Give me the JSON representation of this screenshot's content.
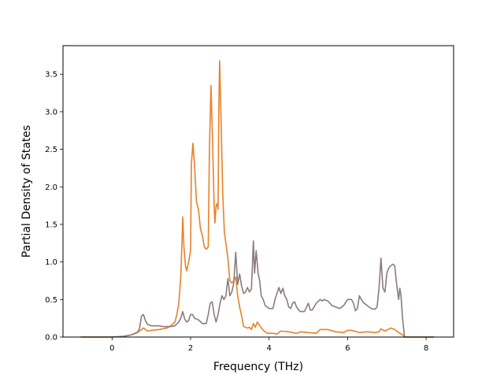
{
  "chart_data": {
    "type": "line",
    "title": "",
    "xlabel": "Frequency (THz)",
    "ylabel": "Partial Density of States",
    "xlim": [
      -1.25,
      8.7
    ],
    "ylim": [
      0,
      3.88
    ],
    "xticks": [
      0,
      2,
      4,
      6,
      8
    ],
    "xtick_labels": [
      "0",
      "2",
      "4",
      "6",
      "8"
    ],
    "yticks": [
      0.0,
      0.5,
      1.0,
      1.5,
      2.0,
      2.5,
      3.0,
      3.5
    ],
    "ytick_labels": [
      "0.0",
      "0.5",
      "1.0",
      "1.5",
      "2.0",
      "2.5",
      "3.0",
      "3.5"
    ],
    "grid": false,
    "legend": "none",
    "series": [
      {
        "color": "#e8812b",
        "points": [
          [
            -0.8,
            0.0
          ],
          [
            0.0,
            0.0
          ],
          [
            0.3,
            0.01
          ],
          [
            0.5,
            0.03
          ],
          [
            0.7,
            0.08
          ],
          [
            0.8,
            0.12
          ],
          [
            0.9,
            0.08
          ],
          [
            1.0,
            0.09
          ],
          [
            1.2,
            0.1
          ],
          [
            1.4,
            0.12
          ],
          [
            1.5,
            0.15
          ],
          [
            1.6,
            0.2
          ],
          [
            1.65,
            0.3
          ],
          [
            1.7,
            0.45
          ],
          [
            1.75,
            0.8
          ],
          [
            1.78,
            1.25
          ],
          [
            1.8,
            1.6
          ],
          [
            1.83,
            1.2
          ],
          [
            1.87,
            0.95
          ],
          [
            1.9,
            0.88
          ],
          [
            1.95,
            1.0
          ],
          [
            2.0,
            1.15
          ],
          [
            2.02,
            2.3
          ],
          [
            2.06,
            2.58
          ],
          [
            2.1,
            2.3
          ],
          [
            2.15,
            1.8
          ],
          [
            2.2,
            1.7
          ],
          [
            2.25,
            1.45
          ],
          [
            2.3,
            1.35
          ],
          [
            2.35,
            1.2
          ],
          [
            2.4,
            1.17
          ],
          [
            2.45,
            1.2
          ],
          [
            2.48,
            2.5
          ],
          [
            2.52,
            3.35
          ],
          [
            2.56,
            2.6
          ],
          [
            2.6,
            1.75
          ],
          [
            2.62,
            1.52
          ],
          [
            2.65,
            1.75
          ],
          [
            2.68,
            1.78
          ],
          [
            2.7,
            1.7
          ],
          [
            2.72,
            3.05
          ],
          [
            2.74,
            3.68
          ],
          [
            2.78,
            2.8
          ],
          [
            2.82,
            1.9
          ],
          [
            2.86,
            1.4
          ],
          [
            2.9,
            1.25
          ],
          [
            2.95,
            1.05
          ],
          [
            3.0,
            0.75
          ],
          [
            3.05,
            0.72
          ],
          [
            3.1,
            0.75
          ],
          [
            3.15,
            0.8
          ],
          [
            3.2,
            0.55
          ],
          [
            3.25,
            0.4
          ],
          [
            3.3,
            0.28
          ],
          [
            3.35,
            0.14
          ],
          [
            3.45,
            0.12
          ],
          [
            3.5,
            0.13
          ],
          [
            3.55,
            0.1
          ],
          [
            3.6,
            0.18
          ],
          [
            3.65,
            0.13
          ],
          [
            3.7,
            0.2
          ],
          [
            3.75,
            0.16
          ],
          [
            3.85,
            0.09
          ],
          [
            3.95,
            0.05
          ],
          [
            4.1,
            0.05
          ],
          [
            4.2,
            0.04
          ],
          [
            4.3,
            0.08
          ],
          [
            4.5,
            0.07
          ],
          [
            4.7,
            0.05
          ],
          [
            4.8,
            0.07
          ],
          [
            5.0,
            0.06
          ],
          [
            5.2,
            0.05
          ],
          [
            5.3,
            0.1
          ],
          [
            5.5,
            0.1
          ],
          [
            5.7,
            0.07
          ],
          [
            5.9,
            0.06
          ],
          [
            6.0,
            0.09
          ],
          [
            6.1,
            0.09
          ],
          [
            6.3,
            0.06
          ],
          [
            6.5,
            0.07
          ],
          [
            6.7,
            0.06
          ],
          [
            6.8,
            0.07
          ],
          [
            6.85,
            0.11
          ],
          [
            6.95,
            0.08
          ],
          [
            7.1,
            0.12
          ],
          [
            7.2,
            0.1
          ],
          [
            7.3,
            0.06
          ],
          [
            7.4,
            0.03
          ],
          [
            7.45,
            0.0
          ],
          [
            8.2,
            0.0
          ]
        ]
      },
      {
        "color": "#8b7b7b",
        "points": [
          [
            -0.8,
            0.0
          ],
          [
            0.0,
            0.0
          ],
          [
            0.3,
            0.01
          ],
          [
            0.5,
            0.03
          ],
          [
            0.65,
            0.06
          ],
          [
            0.7,
            0.12
          ],
          [
            0.75,
            0.28
          ],
          [
            0.8,
            0.3
          ],
          [
            0.85,
            0.22
          ],
          [
            0.9,
            0.17
          ],
          [
            1.0,
            0.15
          ],
          [
            1.2,
            0.15
          ],
          [
            1.3,
            0.14
          ],
          [
            1.5,
            0.14
          ],
          [
            1.6,
            0.15
          ],
          [
            1.7,
            0.2
          ],
          [
            1.75,
            0.25
          ],
          [
            1.8,
            0.34
          ],
          [
            1.85,
            0.24
          ],
          [
            1.9,
            0.2
          ],
          [
            1.95,
            0.22
          ],
          [
            2.0,
            0.3
          ],
          [
            2.05,
            0.3
          ],
          [
            2.1,
            0.25
          ],
          [
            2.2,
            0.23
          ],
          [
            2.3,
            0.18
          ],
          [
            2.4,
            0.18
          ],
          [
            2.45,
            0.3
          ],
          [
            2.5,
            0.45
          ],
          [
            2.55,
            0.47
          ],
          [
            2.6,
            0.3
          ],
          [
            2.65,
            0.2
          ],
          [
            2.7,
            0.3
          ],
          [
            2.75,
            0.45
          ],
          [
            2.8,
            0.55
          ],
          [
            2.85,
            0.5
          ],
          [
            2.9,
            0.55
          ],
          [
            2.95,
            0.78
          ],
          [
            3.0,
            0.55
          ],
          [
            3.05,
            0.6
          ],
          [
            3.1,
            0.72
          ],
          [
            3.15,
            1.13
          ],
          [
            3.2,
            0.7
          ],
          [
            3.25,
            0.84
          ],
          [
            3.3,
            0.68
          ],
          [
            3.35,
            0.58
          ],
          [
            3.4,
            0.6
          ],
          [
            3.45,
            0.66
          ],
          [
            3.5,
            0.6
          ],
          [
            3.55,
            0.64
          ],
          [
            3.6,
            1.28
          ],
          [
            3.63,
            0.85
          ],
          [
            3.67,
            1.15
          ],
          [
            3.72,
            0.85
          ],
          [
            3.76,
            0.75
          ],
          [
            3.8,
            0.55
          ],
          [
            3.85,
            0.5
          ],
          [
            3.9,
            0.42
          ],
          [
            3.95,
            0.4
          ],
          [
            4.0,
            0.38
          ],
          [
            4.1,
            0.38
          ],
          [
            4.15,
            0.5
          ],
          [
            4.25,
            0.66
          ],
          [
            4.3,
            0.58
          ],
          [
            4.35,
            0.65
          ],
          [
            4.4,
            0.55
          ],
          [
            4.45,
            0.5
          ],
          [
            4.5,
            0.4
          ],
          [
            4.55,
            0.38
          ],
          [
            4.6,
            0.45
          ],
          [
            4.65,
            0.47
          ],
          [
            4.7,
            0.4
          ],
          [
            4.75,
            0.36
          ],
          [
            4.8,
            0.34
          ],
          [
            4.9,
            0.34
          ],
          [
            5.0,
            0.45
          ],
          [
            5.05,
            0.36
          ],
          [
            5.1,
            0.36
          ],
          [
            5.2,
            0.45
          ],
          [
            5.3,
            0.5
          ],
          [
            5.35,
            0.48
          ],
          [
            5.4,
            0.5
          ],
          [
            5.5,
            0.48
          ],
          [
            5.6,
            0.42
          ],
          [
            5.7,
            0.4
          ],
          [
            5.8,
            0.38
          ],
          [
            5.9,
            0.42
          ],
          [
            6.0,
            0.5
          ],
          [
            6.1,
            0.5
          ],
          [
            6.15,
            0.45
          ],
          [
            6.2,
            0.35
          ],
          [
            6.25,
            0.38
          ],
          [
            6.3,
            0.55
          ],
          [
            6.35,
            0.5
          ],
          [
            6.4,
            0.46
          ],
          [
            6.5,
            0.42
          ],
          [
            6.6,
            0.38
          ],
          [
            6.7,
            0.37
          ],
          [
            6.75,
            0.4
          ],
          [
            6.8,
            0.65
          ],
          [
            6.85,
            1.05
          ],
          [
            6.9,
            0.65
          ],
          [
            6.95,
            0.6
          ],
          [
            7.0,
            0.85
          ],
          [
            7.05,
            0.92
          ],
          [
            7.1,
            0.95
          ],
          [
            7.15,
            0.97
          ],
          [
            7.2,
            0.95
          ],
          [
            7.25,
            0.7
          ],
          [
            7.3,
            0.5
          ],
          [
            7.33,
            0.65
          ],
          [
            7.36,
            0.55
          ],
          [
            7.4,
            0.25
          ],
          [
            7.45,
            0.0
          ],
          [
            8.2,
            0.0
          ]
        ]
      }
    ]
  }
}
